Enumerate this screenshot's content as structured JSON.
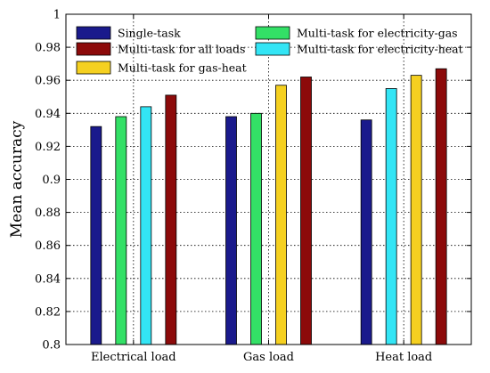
{
  "chart_data": {
    "type": "bar",
    "title": "",
    "xlabel": "",
    "ylabel": "Mean accuracy",
    "categories": [
      "Electrical load",
      "Gas load",
      "Heat load"
    ],
    "ylim": [
      0.8,
      1.0
    ],
    "yticks": [
      0.8,
      0.82,
      0.84,
      0.86,
      0.88,
      0.9,
      0.92,
      0.94,
      0.96,
      0.98,
      1
    ],
    "ytick_labels": [
      "0.8",
      "0.82",
      "0.84",
      "0.86",
      "0.88",
      "0.9",
      "0.92",
      "0.94",
      "0.96",
      "0.98",
      "1"
    ],
    "grid": true,
    "legend_position": "top",
    "series": [
      {
        "name": "Single-task",
        "color": "#1a1a8c",
        "values": [
          0.932,
          0.938,
          0.936
        ]
      },
      {
        "name": "Multi-task for electricity-gas",
        "color": "#33e066",
        "values": [
          0.938,
          0.94,
          null
        ]
      },
      {
        "name": "Multi-task for electricity-heat",
        "color": "#33e5f5",
        "values": [
          0.944,
          null,
          0.955
        ]
      },
      {
        "name": "Multi-task for gas-heat",
        "color": "#f5d020",
        "values": [
          null,
          0.957,
          0.963
        ]
      },
      {
        "name": "Multi-task for all loads",
        "color": "#8c0a0a",
        "values": [
          0.951,
          0.962,
          0.967
        ]
      }
    ],
    "legend_order": [
      "Single-task",
      "Multi-task for all loads",
      "Multi-task for gas-heat",
      "Multi-task for electricity-gas",
      "Multi-task for electricity-heat"
    ]
  }
}
